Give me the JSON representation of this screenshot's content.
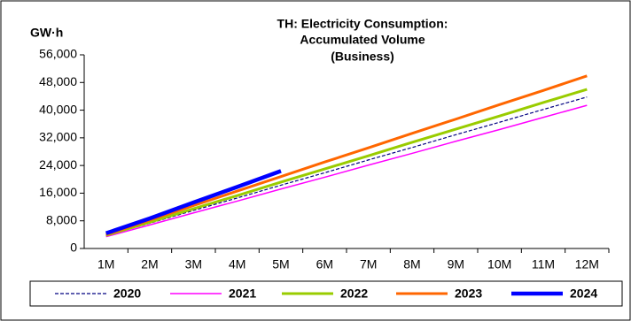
{
  "chart_data": {
    "type": "line",
    "title": [
      "TH: Electricity Consumption:",
      "Accumulated Volume",
      "(Business)"
    ],
    "y_label": "GW·h",
    "categories": [
      "1M",
      "2M",
      "3M",
      "4M",
      "5M",
      "6M",
      "7M",
      "8M",
      "9M",
      "10M",
      "11M",
      "12M"
    ],
    "series": [
      {
        "name": "2020",
        "color": "#000080",
        "dashed": true,
        "width": 1.2,
        "values": [
          3700,
          7300,
          11000,
          14600,
          18300,
          21900,
          25600,
          29200,
          32900,
          36500,
          40200,
          43800
        ]
      },
      {
        "name": "2021",
        "color": "#ff00ff",
        "width": 1.5,
        "values": [
          3400,
          6800,
          10300,
          13700,
          17200,
          20600,
          24100,
          27500,
          31000,
          34400,
          37900,
          41400
        ]
      },
      {
        "name": "2022",
        "color": "#99cc00",
        "width": 3,
        "values": [
          3800,
          7600,
          11500,
          15300,
          19200,
          23000,
          26800,
          30700,
          34500,
          38300,
          42200,
          46000
        ]
      },
      {
        "name": "2023",
        "color": "#ff6600",
        "width": 3,
        "values": [
          4000,
          8200,
          12400,
          16600,
          20800,
          25000,
          29100,
          33300,
          37400,
          41600,
          45700,
          49900
        ]
      },
      {
        "name": "2024",
        "color": "#0000ff",
        "width": 4.5,
        "values": [
          4400,
          8700,
          13300,
          17800,
          22400,
          null,
          null,
          null,
          null,
          null,
          null,
          null
        ]
      }
    ],
    "ylim": [
      0,
      56000
    ],
    "yticks": [
      0,
      {
        "value": 8000,
        "label": "8,000"
      },
      {
        "value": 16000,
        "label": "16,000"
      },
      {
        "value": 24000,
        "label": "24,000"
      },
      {
        "value": 32000,
        "label": "32,000"
      },
      {
        "value": 40000,
        "label": "40,000"
      },
      {
        "value": 48000,
        "label": "48,000"
      },
      {
        "value": 56000,
        "label": "56,000"
      }
    ],
    "grid": false
  }
}
